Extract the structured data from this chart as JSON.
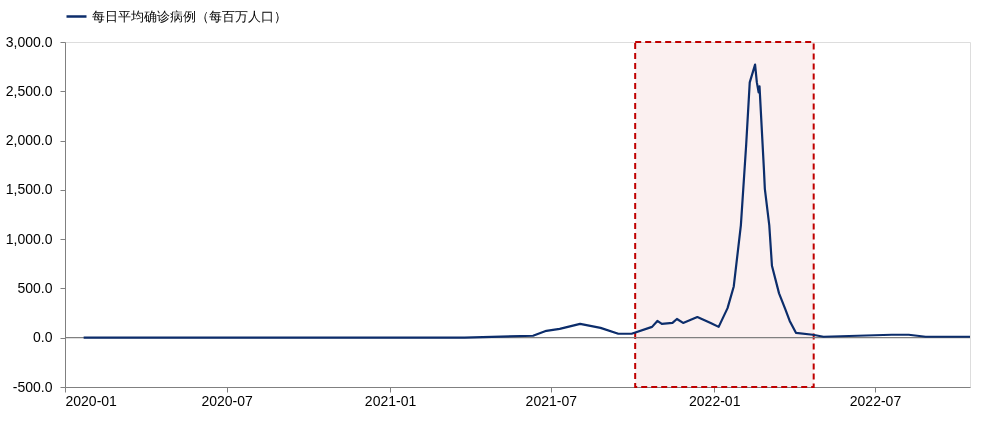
{
  "chart_data": {
    "type": "line",
    "xlim": [
      "2020-01-01",
      "2022-10-16"
    ],
    "xticks": [
      "2020-01",
      "2020-07",
      "2021-01",
      "2021-07",
      "2022-01",
      "2022-07"
    ],
    "ylim": [
      -500,
      3000
    ],
    "yticks": [
      {
        "value": -500,
        "label": "-500.0"
      },
      {
        "value": 0,
        "label": "0.0"
      },
      {
        "value": 500,
        "label": "500.0"
      },
      {
        "value": 1000,
        "label": "1,000.0"
      },
      {
        "value": 1500,
        "label": "1,500.0"
      },
      {
        "value": 2000,
        "label": "2,000.0"
      },
      {
        "value": 2500,
        "label": "2,500.0"
      },
      {
        "value": 3000,
        "label": "3,000.0"
      }
    ],
    "series": [
      {
        "name": "每日平均确诊病例（每百万人口）",
        "color": "#0c2d6b",
        "x": [
          "2020-01-22",
          "2020-07-01",
          "2021-01-01",
          "2021-03-26",
          "2021-06-11",
          "2021-06-26",
          "2021-07-11",
          "2021-08-03",
          "2021-08-26",
          "2021-09-15",
          "2021-09-30",
          "2021-10-23",
          "2021-10-29",
          "2021-11-03",
          "2021-11-15",
          "2021-11-20",
          "2021-11-27",
          "2021-12-13",
          "2021-12-28",
          "2022-01-06",
          "2022-01-16",
          "2022-01-23",
          "2022-01-31",
          "2022-02-06",
          "2022-02-10",
          "2022-02-16",
          "2022-02-18",
          "2022-02-20",
          "2022-02-21",
          "2022-02-26",
          "2022-02-27",
          "2022-03-04",
          "2022-03-07",
          "2022-03-15",
          "2022-03-22",
          "2022-03-27",
          "2022-04-03",
          "2022-04-22",
          "2022-05-04",
          "2022-07-20",
          "2022-08-08",
          "2022-08-27",
          "2022-10-16"
        ],
        "values": [
          0,
          0,
          0,
          0,
          20,
          70,
          90,
          140,
          100,
          40,
          40,
          110,
          170,
          140,
          150,
          190,
          150,
          210,
          150,
          110,
          300,
          520,
          1140,
          1960,
          2590,
          2770,
          2590,
          2490,
          2550,
          1700,
          1510,
          1140,
          730,
          450,
          290,
          170,
          50,
          30,
          10,
          30,
          30,
          10,
          10
        ]
      }
    ],
    "ref_lines": [
      {
        "axis": "y",
        "value": 0,
        "color": "#808080"
      }
    ],
    "bands": [
      {
        "axis": "x",
        "from": "2021-10-04",
        "to": "2022-04-23",
        "color": "#c00000"
      }
    ],
    "legend": "top",
    "grid": false
  }
}
